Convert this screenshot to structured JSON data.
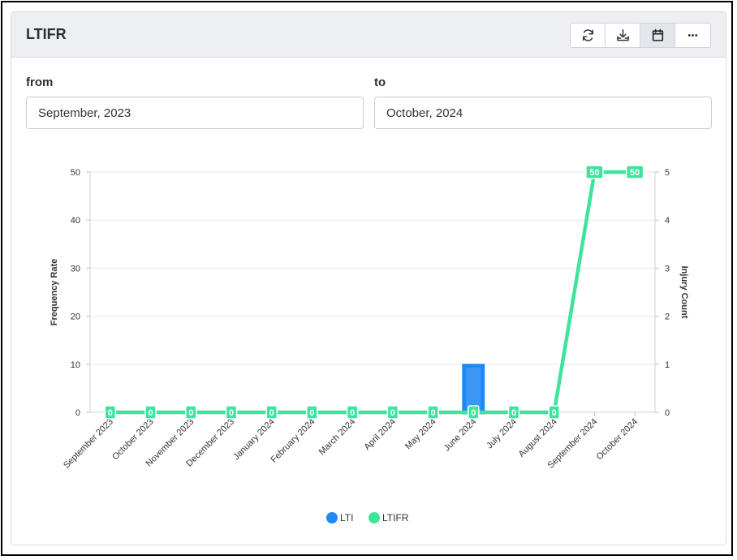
{
  "card": {
    "title": "LTIFR",
    "toolbar": [
      {
        "name": "refresh-button",
        "icon": "refresh-icon",
        "active": false
      },
      {
        "name": "download-button",
        "icon": "download-icon",
        "active": false
      },
      {
        "name": "calendar-button",
        "icon": "calendar-icon",
        "active": true
      },
      {
        "name": "more-button",
        "icon": "more-icon",
        "active": false
      }
    ]
  },
  "filters": {
    "from_label": "from",
    "from_value": "September, 2023",
    "to_label": "to",
    "to_value": "October, 2024"
  },
  "colors": {
    "lti": "#1e88f5",
    "lti_fill": "#3d97f7",
    "ltifr": "#3ee49c",
    "grid": "#e6e6e6"
  },
  "chart_data": {
    "type": "bar",
    "categories": [
      "September 2023",
      "October 2023",
      "November 2023",
      "December 2023",
      "January 2024",
      "February 2024",
      "March 2024",
      "April 2024",
      "May 2024",
      "June 2024",
      "July 2024",
      "August 2024",
      "September 2024",
      "October 2024"
    ],
    "series": [
      {
        "name": "LTI",
        "type": "bar",
        "axis": "right",
        "values": [
          0,
          0,
          0,
          0,
          0,
          0,
          0,
          0,
          0,
          1,
          0,
          0,
          0,
          0
        ]
      },
      {
        "name": "LTIFR",
        "type": "line",
        "axis": "left",
        "values": [
          0,
          0,
          0,
          0,
          0,
          0,
          0,
          0,
          0,
          0,
          0,
          0,
          50,
          50
        ]
      }
    ],
    "ylabel": "Frequency Rate",
    "y2label": "Injury Count",
    "ylim": [
      0,
      50
    ],
    "y2lim": [
      0,
      5
    ],
    "yticks": [
      "0",
      "10",
      "20",
      "30",
      "40",
      "50"
    ],
    "y2ticks": [
      "0",
      "1",
      "2",
      "3",
      "4",
      "5"
    ],
    "data_labels": [
      "0",
      "0",
      "0",
      "0",
      "0",
      "0",
      "0",
      "0",
      "0",
      "0",
      "0",
      "0",
      "50",
      "50"
    ],
    "legend_position": "bottom-center"
  }
}
